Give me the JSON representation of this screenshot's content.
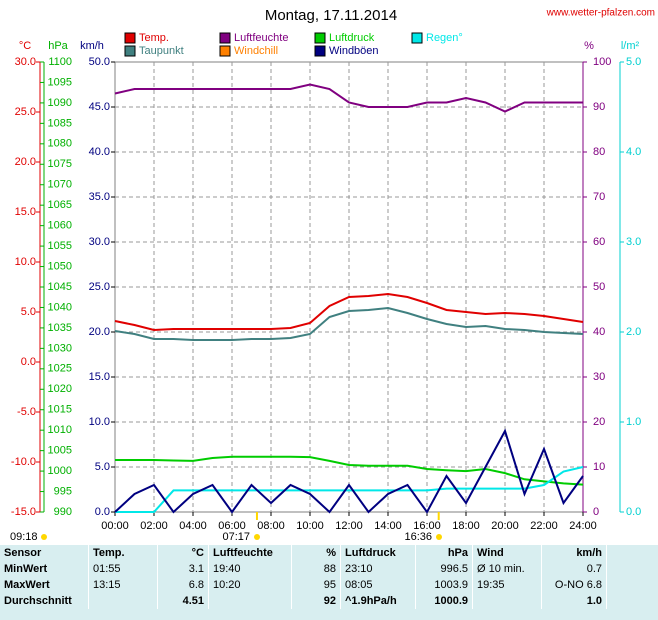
{
  "chart_data": {
    "type": "line",
    "title": "Montag, 17.11.2014",
    "source": "www.wetter-pfalzen.com",
    "x": [
      0,
      1,
      2,
      3,
      4,
      5,
      6,
      7,
      8,
      9,
      10,
      11,
      12,
      13,
      14,
      15,
      16,
      17,
      18,
      19,
      20,
      21,
      22,
      23,
      24
    ],
    "xlim": [
      0,
      24
    ],
    "xticks": [
      {
        "value": 0,
        "label": "00:00"
      },
      {
        "value": 2,
        "label": "02:00"
      },
      {
        "value": 4,
        "label": "04:00"
      },
      {
        "value": 6,
        "label": "06:00"
      },
      {
        "value": 8,
        "label": "08:00"
      },
      {
        "value": 10,
        "label": "10:00"
      },
      {
        "value": 12,
        "label": "12:00"
      },
      {
        "value": 14,
        "label": "14:00"
      },
      {
        "value": 16,
        "label": "16:00"
      },
      {
        "value": 18,
        "label": "18:00"
      },
      {
        "value": 20,
        "label": "20:00"
      },
      {
        "value": 22,
        "label": "22:00"
      },
      {
        "value": 24,
        "label": "24:00"
      }
    ],
    "grid": true,
    "grid_axis": 2,
    "axes": [
      {
        "label": "°C",
        "color": "#e00000",
        "lim": [
          -15,
          30
        ],
        "ticks": [
          {
            "value": -15,
            "label": "-15.0"
          },
          {
            "value": -10,
            "label": "-10.0"
          },
          {
            "value": -5,
            "label": "-5.0"
          },
          {
            "value": 0,
            "label": "0.0"
          },
          {
            "value": 5,
            "label": "5.0"
          },
          {
            "value": 10,
            "label": "10.0"
          },
          {
            "value": 15,
            "label": "15.0"
          },
          {
            "value": 20,
            "label": "20.0"
          },
          {
            "value": 25,
            "label": "25.0"
          },
          {
            "value": 30,
            "label": "30.0"
          }
        ]
      },
      {
        "label": "hPa",
        "color": "#00b000",
        "lim": [
          990,
          1100
        ],
        "ticks": [
          990,
          995,
          1000,
          1005,
          1010,
          1015,
          1020,
          1025,
          1030,
          1035,
          1040,
          1045,
          1050,
          1055,
          1060,
          1065,
          1070,
          1075,
          1080,
          1085,
          1090,
          1095,
          1100
        ]
      },
      {
        "label": "km/h",
        "color": "#000080",
        "lim": [
          0,
          50
        ],
        "ticks": [
          {
            "value": 0,
            "label": "0.0"
          },
          {
            "value": 5,
            "label": "5.0"
          },
          {
            "value": 10,
            "label": "10.0"
          },
          {
            "value": 15,
            "label": "15.0"
          },
          {
            "value": 20,
            "label": "20.0"
          },
          {
            "value": 25,
            "label": "25.0"
          },
          {
            "value": 30,
            "label": "30.0"
          },
          {
            "value": 35,
            "label": "35.0"
          },
          {
            "value": 40,
            "label": "40.0"
          },
          {
            "value": 45,
            "label": "45.0"
          },
          {
            "value": 50,
            "label": "50.0"
          }
        ]
      },
      {
        "label": "%",
        "color": "#800080",
        "lim": [
          0,
          100
        ],
        "ticks": [
          0,
          10,
          20,
          30,
          40,
          50,
          60,
          70,
          80,
          90,
          100
        ]
      },
      {
        "label": "l/m²",
        "color": "#00d0d0",
        "lim": [
          0,
          5
        ],
        "ticks": [
          {
            "value": 0,
            "label": "0.0"
          },
          {
            "value": 1,
            "label": "1.0"
          },
          {
            "value": 2,
            "label": "2.0"
          },
          {
            "value": 3,
            "label": "3.0"
          },
          {
            "value": 4,
            "label": "4.0"
          },
          {
            "value": 5,
            "label": "5.0"
          }
        ]
      }
    ],
    "series": [
      {
        "name": "Temp.",
        "color": "#e00000",
        "axis": 0,
        "values": [
          4.1,
          3.7,
          3.2,
          3.3,
          3.3,
          3.3,
          3.3,
          3.3,
          3.3,
          3.4,
          3.9,
          5.6,
          6.5,
          6.6,
          6.8,
          6.5,
          5.9,
          5.2,
          5.0,
          4.8,
          4.9,
          4.8,
          4.6,
          4.3,
          4.0
        ]
      },
      {
        "name": "Luftfeuchte",
        "color": "#800080",
        "axis": 3,
        "values": [
          93,
          94,
          94,
          94,
          94,
          94,
          94,
          94,
          94,
          94,
          95,
          94,
          91,
          90,
          90,
          90,
          91,
          91,
          92,
          91,
          89,
          91,
          91,
          91,
          91
        ]
      },
      {
        "name": "Luftdruck",
        "color": "#00cc00",
        "axis": 1,
        "values": [
          1002.7,
          1002.7,
          1002.7,
          1002.6,
          1002.5,
          1003.2,
          1003.5,
          1003.5,
          1003.5,
          1003.5,
          1003.4,
          1002.5,
          1001.5,
          1001.3,
          1001.3,
          1001.3,
          1000.5,
          1000.2,
          1000.0,
          1000.5,
          999.5,
          998.0,
          997.5,
          997.0,
          996.7
        ]
      },
      {
        "name": "Regen°",
        "color": "#00e8e8",
        "axis": 4,
        "values": [
          0,
          0,
          0,
          0.24,
          0.24,
          0.24,
          0.24,
          0.24,
          0.24,
          0.24,
          0.24,
          0.24,
          0.24,
          0.24,
          0.24,
          0.24,
          0.24,
          0.26,
          0.26,
          0.26,
          0.26,
          0.26,
          0.3,
          0.45,
          0.5
        ]
      },
      {
        "name": "Taupunkt",
        "color": "#408080",
        "axis": 0,
        "values": [
          3.1,
          2.8,
          2.3,
          2.3,
          2.2,
          2.2,
          2.2,
          2.3,
          2.3,
          2.4,
          2.8,
          4.5,
          5.1,
          5.2,
          5.4,
          4.9,
          4.3,
          3.8,
          3.5,
          3.6,
          3.3,
          3.2,
          3.0,
          2.9,
          2.8
        ]
      },
      {
        "name": "Windchill",
        "color": "#ff8000",
        "axis": 0,
        "values": [
          null,
          null,
          null,
          null,
          null,
          null,
          null,
          null,
          null,
          null,
          null,
          null,
          null,
          null,
          null,
          null,
          null,
          null,
          null,
          null,
          null,
          null,
          null,
          null,
          null
        ]
      },
      {
        "name": "Windböen",
        "color": "#000080",
        "axis": 2,
        "values": [
          0,
          2,
          3,
          0,
          2,
          3,
          0,
          3,
          1,
          3,
          2,
          0,
          3,
          0,
          2,
          3,
          0,
          4,
          1,
          5,
          9,
          2,
          7,
          1,
          4
        ]
      }
    ],
    "footer_times": [
      "09:18",
      "07:17",
      "16:36"
    ]
  },
  "table": {
    "header": [
      "Sensor",
      "Temp.",
      "°C",
      "Luftfeuchte",
      "%",
      "Luftdruck",
      "hPa",
      "Wind",
      "km/h"
    ],
    "rows": [
      [
        "MinWert",
        "01:55",
        "3.1",
        "19:40",
        "88",
        "23:10",
        "996.5",
        "Ø 10 min.",
        "0.7"
      ],
      [
        "MaxWert",
        "13:15",
        "6.8",
        "10:20",
        "95",
        "08:05",
        "1003.9",
        "19:35",
        "O-NO 6.8"
      ],
      [
        "Durchschnitt",
        null,
        "4.51",
        null,
        "92",
        "^1.9hPa/h",
        "1000.9",
        null,
        "1.0"
      ]
    ]
  }
}
